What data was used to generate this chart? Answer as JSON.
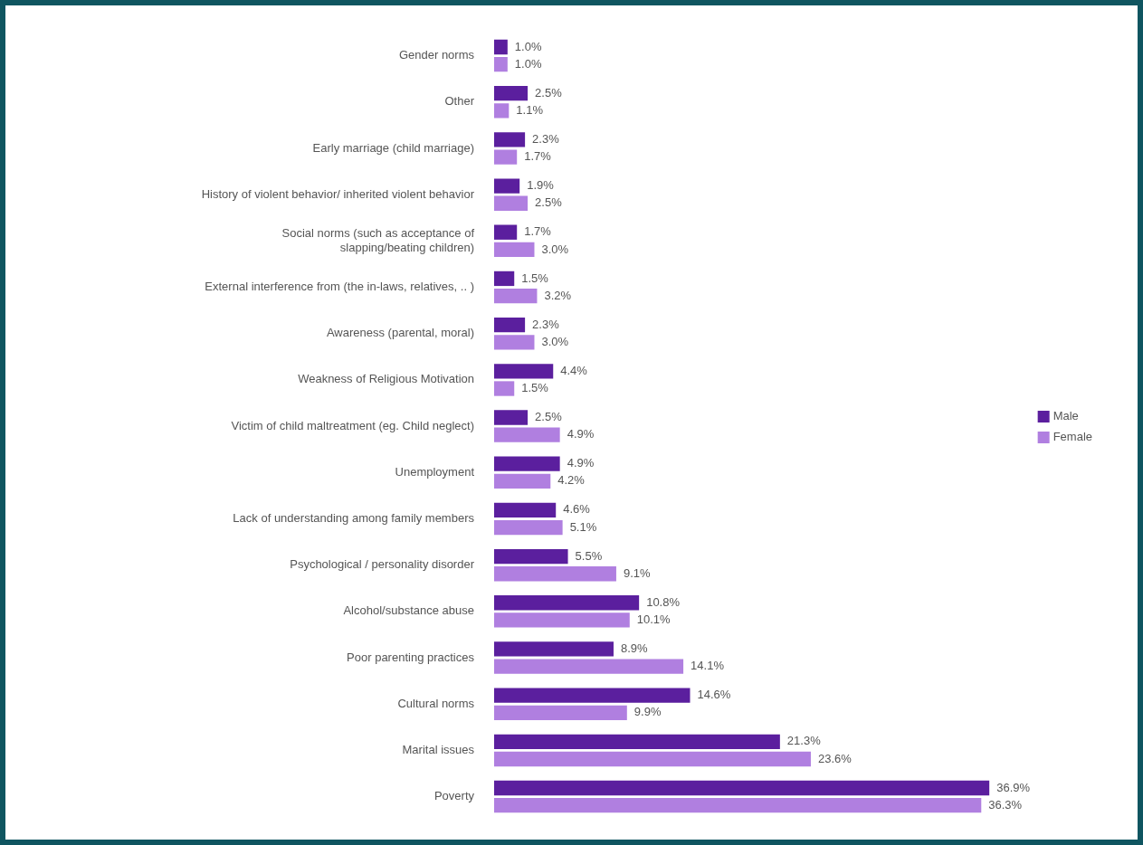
{
  "chart_data": {
    "type": "bar",
    "orientation": "horizontal",
    "categories": [
      "Gender norms",
      "Other",
      "Early marriage (child marriage)",
      "History of violent behavior/ inherited violent behavior",
      "Social norms (such as acceptance of slapping/beating children)",
      "External interference from (the in-laws, relatives, .. )",
      "Awareness (parental, moral)",
      "Weakness of Religious Motivation",
      "Victim of child maltreatment (eg. Child neglect)",
      "Unemployment",
      "Lack of understanding among family members",
      "Psychological / personality disorder",
      "Alcohol/substance abuse",
      "Poor parenting practices",
      "Cultural norms",
      "Marital issues",
      "Poverty"
    ],
    "series": [
      {
        "name": "Male",
        "color": "#5b1f9e",
        "values": [
          1.0,
          2.5,
          2.3,
          1.9,
          1.7,
          1.5,
          2.3,
          4.4,
          2.5,
          4.9,
          4.6,
          5.5,
          10.8,
          8.9,
          14.6,
          21.3,
          36.9
        ],
        "value_labels": [
          "1.0%",
          "2.5%",
          "2.3%",
          "1.9%",
          "1.7%",
          "1.5%",
          "2.3%",
          "4.4%",
          "2.5%",
          "4.9%",
          "4.6%",
          "5.5%",
          "10.8%",
          "8.9%",
          "14.6%",
          "21.3%",
          "36.9%"
        ]
      },
      {
        "name": "Female",
        "color": "#b07fe0",
        "values": [
          1.0,
          1.1,
          1.7,
          2.5,
          3.0,
          3.2,
          3.0,
          1.5,
          4.9,
          4.2,
          5.1,
          9.1,
          10.1,
          14.1,
          9.9,
          23.6,
          36.3
        ],
        "value_labels": [
          "1.0%",
          "1.1%",
          "1.7%",
          "2.5%",
          "3.0%",
          "3.2%",
          "3.0%",
          "1.5%",
          "4.9%",
          "4.2%",
          "5.1%",
          "9.1%",
          "10.1%",
          "14.1%",
          "9.9%",
          "23.6%",
          "36.3%"
        ]
      }
    ],
    "tick_labels": "y",
    "legend": "right"
  }
}
